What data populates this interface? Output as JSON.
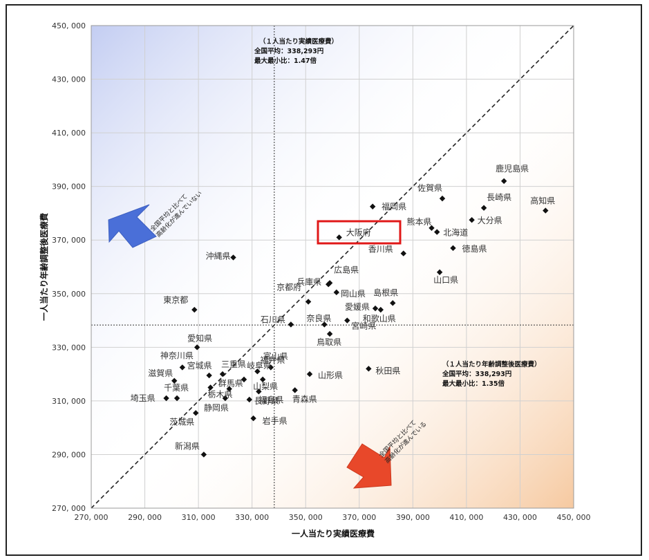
{
  "chart_data": {
    "type": "scatter",
    "xlabel": "一人当たり実績医療費",
    "ylabel": "一人当たり年齢調整後医療費",
    "xlim": [
      270000,
      450000
    ],
    "ylim": [
      270000,
      450000
    ],
    "x_ticks": [
      "270, 000",
      "290, 000",
      "310, 000",
      "330, 000",
      "350, 000",
      "370, 000",
      "390, 000",
      "410, 000",
      "430, 000",
      "450, 000"
    ],
    "y_ticks": [
      "270, 000",
      "290, 000",
      "310, 000",
      "330, 000",
      "350, 000",
      "370, 000",
      "390, 000",
      "410, 000",
      "430, 000",
      "450, 000"
    ],
    "grid": true,
    "diagonal_line": true,
    "mean_value": 338293,
    "annotation_top": {
      "lines": [
        "（１人当たり実績医療費）",
        "全国平均：338,293円",
        "最大最小比：1.47倍"
      ]
    },
    "annotation_right": {
      "lines": [
        "（１人当たり年齢調整後医療費）",
        "全国平均：338,293円",
        "最大最小比：1.35倍"
      ]
    },
    "arrow_upper_left_text": [
      "全国平均と比べて",
      "高齢化が進んでいない"
    ],
    "arrow_lower_right_text": [
      "全国平均と比べて",
      "高齢化が進んでいる"
    ],
    "highlight": "大阪府",
    "colors": {
      "highlight_box": "#e01818",
      "arrow_blue": "#4a6fd8",
      "arrow_red": "#e8482a",
      "marker": "#111111"
    },
    "points": [
      {
        "name": "鹿児島県",
        "x": 424000,
        "y": 392000
      },
      {
        "name": "佐賀県",
        "x": 401000,
        "y": 385500
      },
      {
        "name": "長崎県",
        "x": 416500,
        "y": 382000
      },
      {
        "name": "高知県",
        "x": 439500,
        "y": 381000
      },
      {
        "name": "福岡県",
        "x": 375000,
        "y": 382500
      },
      {
        "name": "熊本県",
        "x": 397000,
        "y": 374500
      },
      {
        "name": "大分県",
        "x": 412000,
        "y": 377500
      },
      {
        "name": "北海道",
        "x": 399000,
        "y": 373000
      },
      {
        "name": "大阪府",
        "x": 362500,
        "y": 371000
      },
      {
        "name": "徳島県",
        "x": 405000,
        "y": 367000
      },
      {
        "name": "香川県",
        "x": 386500,
        "y": 365000
      },
      {
        "name": "沖縄県",
        "x": 323000,
        "y": 363500
      },
      {
        "name": "山口県",
        "x": 400000,
        "y": 358000
      },
      {
        "name": "広島県",
        "x": 359000,
        "y": 354000
      },
      {
        "name": "兵庫県",
        "x": 358500,
        "y": 353500
      },
      {
        "name": "岡山県",
        "x": 361500,
        "y": 350500
      },
      {
        "name": "島根県",
        "x": 382500,
        "y": 346500
      },
      {
        "name": "京都府",
        "x": 351000,
        "y": 347000
      },
      {
        "name": "東京都",
        "x": 308500,
        "y": 344000
      },
      {
        "name": "愛媛県",
        "x": 376000,
        "y": 344500
      },
      {
        "name": "和歌山県",
        "x": 378000,
        "y": 344000
      },
      {
        "name": "石川県",
        "x": 344500,
        "y": 338500
      },
      {
        "name": "奈良県",
        "x": 357000,
        "y": 338500
      },
      {
        "name": "宮崎県",
        "x": 365500,
        "y": 340000
      },
      {
        "name": "鳥取県",
        "x": 359000,
        "y": 335000
      },
      {
        "name": "愛知県",
        "x": 309500,
        "y": 330000
      },
      {
        "name": "秋田県",
        "x": 373500,
        "y": 322000
      },
      {
        "name": "神奈川県",
        "x": 304000,
        "y": 322500
      },
      {
        "name": "宮城県",
        "x": 314000,
        "y": 319500
      },
      {
        "name": "三重県",
        "x": 319000,
        "y": 320000
      },
      {
        "name": "岐阜県",
        "x": 327000,
        "y": 318000
      },
      {
        "name": "福井県",
        "x": 332000,
        "y": 321000
      },
      {
        "name": "富山県",
        "x": 337000,
        "y": 322500
      },
      {
        "name": "山梨県",
        "x": 334000,
        "y": 318000
      },
      {
        "name": "山形県",
        "x": 351500,
        "y": 320000
      },
      {
        "name": "滋賀県",
        "x": 301000,
        "y": 317500
      },
      {
        "name": "千葉県",
        "x": 302000,
        "y": 311000
      },
      {
        "name": "埼玉県",
        "x": 298000,
        "y": 311000
      },
      {
        "name": "栃木県",
        "x": 314500,
        "y": 315000
      },
      {
        "name": "群馬県",
        "x": 321500,
        "y": 314500
      },
      {
        "name": "長野県",
        "x": 329000,
        "y": 310500
      },
      {
        "name": "福島県",
        "x": 332500,
        "y": 313500
      },
      {
        "name": "静岡県",
        "x": 320000,
        "y": 311000
      },
      {
        "name": "青森県",
        "x": 346000,
        "y": 314000
      },
      {
        "name": "茨城県",
        "x": 309000,
        "y": 305500
      },
      {
        "name": "岩手県",
        "x": 330500,
        "y": 303500
      },
      {
        "name": "新潟県",
        "x": 312000,
        "y": 290000
      }
    ]
  }
}
